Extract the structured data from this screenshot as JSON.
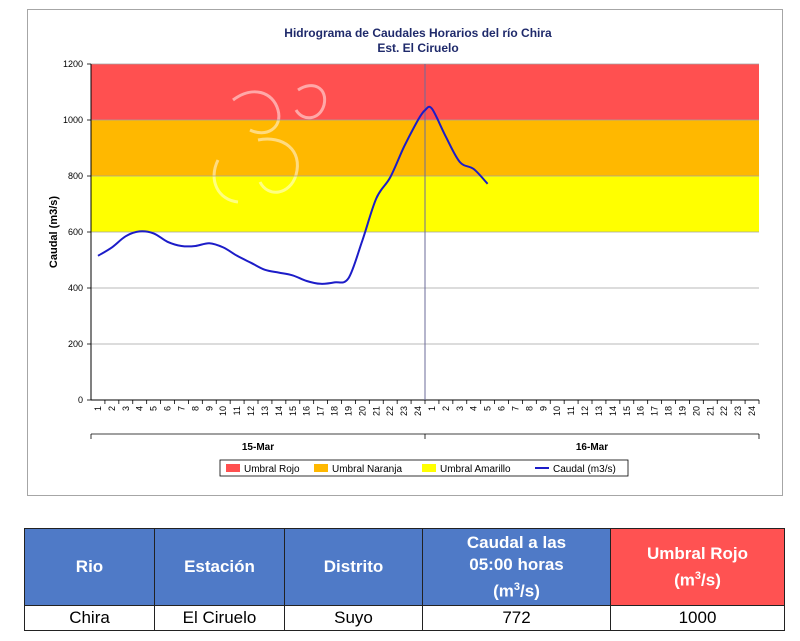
{
  "chart_data": {
    "type": "line",
    "title": "Hidrograma de Caudales Horarios del río Chira",
    "subtitle": "Est. El Ciruelo",
    "ylabel": "Caudal  (m3/s)",
    "ylim": [
      0,
      1200
    ],
    "yticks": [
      "0",
      "200",
      "400",
      "600",
      "800",
      "1000",
      "1200"
    ],
    "xticks_day1": [
      "1",
      "2",
      "3",
      "4",
      "5",
      "6",
      "7",
      "8",
      "9",
      "10",
      "11",
      "12",
      "13",
      "14",
      "15",
      "16",
      "17",
      "18",
      "19",
      "20",
      "21",
      "22",
      "23",
      "24"
    ],
    "xticks_day2": [
      "1",
      "2",
      "3",
      "4",
      "5",
      "6",
      "7",
      "8",
      "9",
      "10",
      "11",
      "12",
      "13",
      "14",
      "15",
      "16",
      "17",
      "18",
      "19",
      "20",
      "21",
      "22",
      "23",
      "24"
    ],
    "x_groups": [
      "15-Mar",
      "16-Mar"
    ],
    "bands": [
      {
        "name": "Umbral Rojo",
        "from": 1000,
        "to": 1200,
        "color": "#ff5050"
      },
      {
        "name": "Umbral Naranja",
        "from": 800,
        "to": 1000,
        "color": "#ffb800"
      },
      {
        "name": "Umbral Amarillo",
        "from": 600,
        "to": 800,
        "color": "#ffff00"
      }
    ],
    "series": [
      {
        "name": "Caudal (m3/s)",
        "color": "#1c1cc8",
        "x": [
          1,
          2,
          3,
          4,
          5,
          6,
          7,
          8,
          9,
          10,
          11,
          12,
          13,
          14,
          15,
          16,
          17,
          18,
          19,
          20,
          21,
          22,
          23,
          24,
          24.5,
          25,
          26,
          27,
          28,
          29
        ],
        "values": [
          515,
          545,
          585,
          602,
          595,
          565,
          550,
          550,
          560,
          545,
          515,
          490,
          465,
          455,
          445,
          425,
          415,
          420,
          435,
          570,
          720,
          795,
          905,
          1000,
          1035,
          1040,
          940,
          850,
          825,
          772
        ]
      }
    ],
    "legend_position": "bottom"
  },
  "table": {
    "headers": {
      "rio": "Rio",
      "estacion": "Estación",
      "distrito": "Distrito",
      "caudal_line1": "Caudal a las",
      "caudal_line2": "05:00 horas",
      "caudal_unit": "(m",
      "caudal_unit_sup": "3",
      "caudal_unit_end": "/s)",
      "umbral_line1": "Umbral Rojo",
      "umbral_unit": "(m",
      "umbral_unit_sup": "3",
      "umbral_unit_end": "/s)"
    },
    "row": {
      "rio": "Chira",
      "estacion": "El Ciruelo",
      "distrito": "Suyo",
      "caudal": "772",
      "umbral": "1000"
    }
  }
}
